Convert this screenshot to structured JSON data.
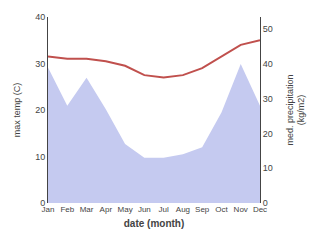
{
  "chart_data": {
    "type": "line",
    "categories": [
      "Jan",
      "Feb",
      "Mar",
      "Apr",
      "May",
      "Jun",
      "Jul",
      "Aug",
      "Sep",
      "Oct",
      "Nov",
      "Dec"
    ],
    "xlabel": "date (month)",
    "ylabel": "max temp (C)",
    "y2label": "med. precipitation\n(kg/m2)",
    "series": [
      {
        "type": "area",
        "color": "#c5caf0",
        "axis": "y2",
        "values": [
          39,
          28,
          36,
          27,
          17,
          13,
          13,
          14,
          16,
          26,
          40,
          28
        ]
      },
      {
        "type": "line",
        "color": "#c0504d",
        "values": [
          31.5,
          31.0,
          31.0,
          30.5,
          29.5,
          27.5,
          27.0,
          27.5,
          29.0,
          31.5,
          34.0,
          35.0
        ]
      }
    ],
    "ylim": [
      0,
      40
    ],
    "yticks": [
      0,
      10,
      20,
      30,
      40
    ],
    "y2lim": [
      0,
      53.5
    ],
    "y2ticks": [
      0,
      10,
      20,
      30,
      40,
      50
    ],
    "grid": false
  }
}
